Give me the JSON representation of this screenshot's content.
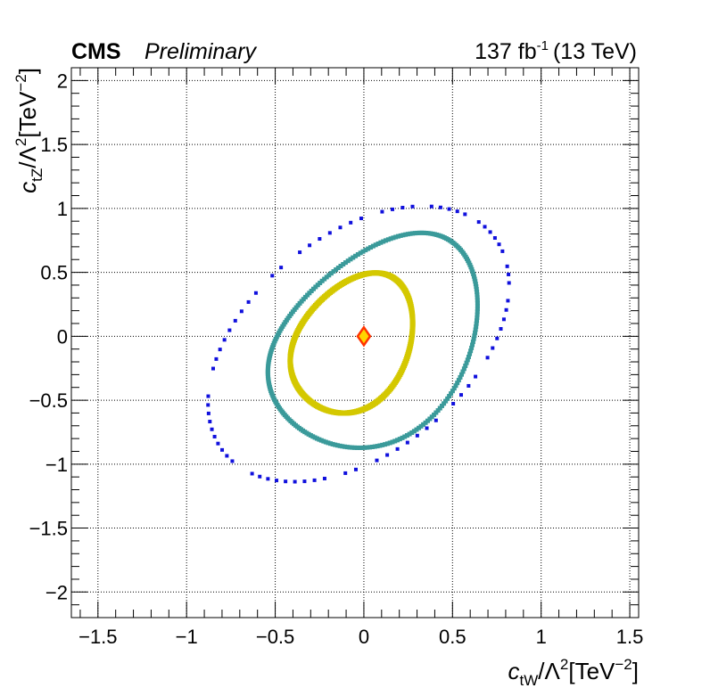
{
  "header": {
    "experiment": "CMS",
    "status": "Preliminary",
    "lumi_value": "137 fb",
    "lumi_exp": "-1",
    "energy": "(13 TeV)"
  },
  "chart_data": {
    "type": "scatter",
    "title": "",
    "xlabel": {
      "symbol": "c",
      "sub": "tW",
      "mid": "/Λ",
      "sup": "2",
      "unit": "[TeV",
      "unit_sup": "−2",
      "close": "]"
    },
    "ylabel": {
      "symbol": "c",
      "sub": "tZ",
      "mid": "/Λ",
      "sup": "2",
      "unit": "[TeV",
      "unit_sup": "−2",
      "close": "]"
    },
    "xlim": [
      -1.65,
      1.55
    ],
    "ylim": [
      -2.2,
      2.1
    ],
    "xticks": [
      -1.5,
      -1,
      -0.5,
      0,
      0.5,
      1,
      1.5
    ],
    "xtick_labels": [
      "−1.5",
      "−1",
      "−0.5",
      "0",
      "0.5",
      "1",
      "1.5"
    ],
    "yticks": [
      -2,
      -1.5,
      -1,
      -0.5,
      0,
      0.5,
      1,
      1.5,
      2
    ],
    "ytick_labels": [
      "−2",
      "−1.5",
      "−1",
      "−0.5",
      "0",
      "0.5",
      "1",
      "1.5",
      "2"
    ],
    "grid": true,
    "best_fit": {
      "x": 0.0,
      "y": 0.0,
      "fill": "#ffd400",
      "stroke": "#ff3300"
    },
    "contours": [
      {
        "color": "#d4c800",
        "style": "dense",
        "center": [
          -0.07,
          -0.06
        ],
        "semi_axes": [
          0.34,
          0.54
        ],
        "tilt": [
          0.15,
          0.04
        ],
        "points": [
          [
            0.33,
            -0.06
          ],
          [
            0.28,
            0.25
          ],
          [
            0.17,
            0.46
          ],
          [
            0.04,
            0.44
          ],
          [
            -0.11,
            0.36
          ],
          [
            -0.24,
            0.2
          ],
          [
            -0.37,
            -0.04
          ],
          [
            -0.41,
            -0.28
          ],
          [
            -0.33,
            -0.53
          ],
          [
            -0.17,
            -0.55
          ],
          [
            0.0,
            -0.45
          ],
          [
            0.19,
            -0.26
          ]
        ]
      },
      {
        "color": "#3a9a9a",
        "style": "dense",
        "center": [
          0.05,
          -0.05
        ],
        "semi_axes": [
          0.58,
          0.82
        ],
        "tilt": [
          0.29,
          0.08
        ],
        "points": [
          [
            0.63,
            0.0
          ],
          [
            0.55,
            0.47
          ],
          [
            0.35,
            0.76
          ],
          [
            0.09,
            0.74
          ],
          [
            -0.2,
            0.6
          ],
          [
            -0.42,
            0.37
          ],
          [
            -0.62,
            -0.04
          ],
          [
            -0.65,
            -0.5
          ],
          [
            -0.44,
            -0.84
          ],
          [
            -0.15,
            -0.82
          ],
          [
            0.11,
            -0.61
          ],
          [
            0.4,
            -0.3
          ]
        ]
      },
      {
        "color": "#1010dd",
        "style": "sparse",
        "center": [
          -0.03,
          -0.06
        ],
        "semi_axes": [
          0.82,
          1.06
        ],
        "tilt": [
          0.55,
          0.0
        ],
        "points": [
          [
            0.79,
            -0.06
          ],
          [
            0.71,
            0.53
          ],
          [
            0.5,
            0.97
          ],
          [
            0.12,
            1.0
          ],
          [
            -0.3,
            0.78
          ],
          [
            -0.6,
            0.4
          ],
          [
            -0.85,
            -0.06
          ],
          [
            -0.8,
            -0.57
          ],
          [
            -0.5,
            -1.09
          ],
          [
            -0.1,
            -1.04
          ],
          [
            0.2,
            -0.69
          ],
          [
            0.55,
            -0.3
          ]
        ]
      }
    ]
  }
}
